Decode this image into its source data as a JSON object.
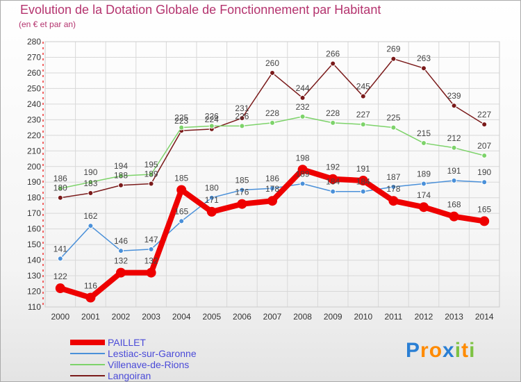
{
  "chart_data": {
    "type": "line",
    "title": "Evolution de la Dotation Globale de Fonctionnement par Habitant",
    "subtitle": "(en € et par an)",
    "xlabel": "",
    "ylabel": "",
    "ylim": [
      110,
      280
    ],
    "yticks": [
      110,
      120,
      130,
      140,
      150,
      160,
      170,
      180,
      190,
      200,
      210,
      220,
      230,
      240,
      250,
      260,
      270,
      280
    ],
    "categories": [
      "2000",
      "2001",
      "2002",
      "2003",
      "2004",
      "2005",
      "2006",
      "2007",
      "2008",
      "2009",
      "2010",
      "2011",
      "2012",
      "2013",
      "2014"
    ],
    "grid": true,
    "legend_position": "bottom-left",
    "series": [
      {
        "name": "PAILLET",
        "color": "#ee0000",
        "values": [
          122,
          116,
          132,
          132,
          185,
          171,
          176,
          178,
          198,
          192,
          191,
          178,
          174,
          168,
          165
        ]
      },
      {
        "name": "Lestiac-sur-Garonne",
        "color": "#4a90d9",
        "values": [
          141,
          162,
          146,
          147,
          165,
          180,
          185,
          186,
          189,
          184,
          184,
          187,
          189,
          191,
          190
        ]
      },
      {
        "name": "Villenave-de-Rions",
        "color": "#7dd36a",
        "values": [
          186,
          190,
          194,
          195,
          225,
          226,
          226,
          228,
          232,
          228,
          227,
          225,
          215,
          212,
          207
        ]
      },
      {
        "name": "Langoiran",
        "color": "#7a1a1a",
        "values": [
          180,
          183,
          188,
          189,
          223,
          224,
          231,
          260,
          244,
          266,
          245,
          269,
          263,
          239,
          227
        ]
      }
    ]
  },
  "logo": {
    "letters": [
      "P",
      "r",
      "o",
      "x",
      "i",
      "t",
      "i"
    ],
    "colors": [
      "#2a7fd4",
      "#ff8a00",
      "#ff8a00",
      "#2a7fd4",
      "#7dc242",
      "#ff8a00",
      "#7dc242"
    ]
  }
}
